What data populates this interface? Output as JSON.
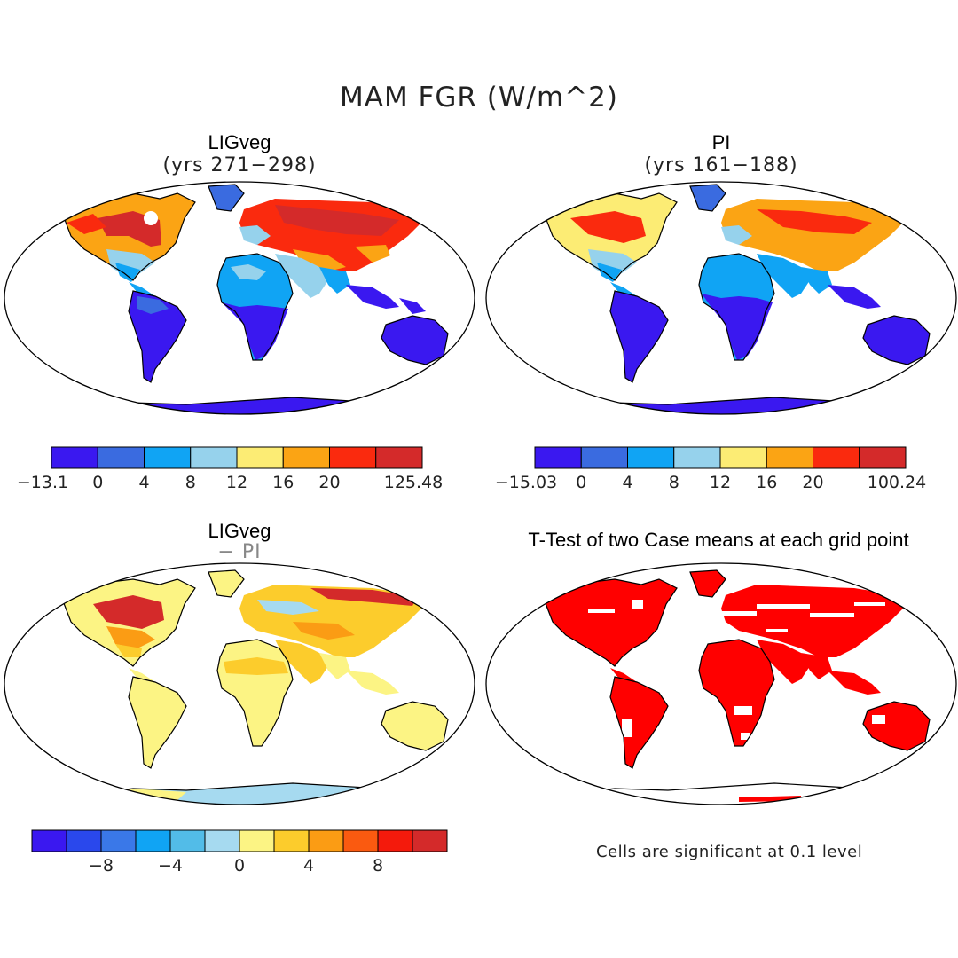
{
  "figure": {
    "title": "MAM FGR (W/m^2)",
    "panels": [
      {
        "id": "ligveg",
        "title": "LIGveg",
        "subtitle": "(yrs 271−298)",
        "colorbar": {
          "colors": [
            "#3a18f0",
            "#3a6be0",
            "#10a4f4",
            "#96d2ec",
            "#fcec74",
            "#fba414",
            "#fa2a0e",
            "#d42a2a"
          ],
          "labels": [
            "−13.1",
            "0",
            "4",
            "8",
            "12",
            "16",
            "20",
            "125.48"
          ]
        }
      },
      {
        "id": "pi",
        "title": "PI",
        "subtitle": "(yrs 161−188)",
        "colorbar": {
          "colors": [
            "#3a18f0",
            "#3a6be0",
            "#10a4f4",
            "#96d2ec",
            "#fcec74",
            "#fba414",
            "#fa2a0e",
            "#d42a2a"
          ],
          "labels": [
            "−15.03",
            "0",
            "4",
            "8",
            "12",
            "16",
            "20",
            "100.24"
          ]
        }
      },
      {
        "id": "diff",
        "title": "LIGveg",
        "subtitle": "− PI",
        "colorbar": {
          "colors": [
            "#3a18f0",
            "#2a48ec",
            "#3a78e8",
            "#10a4f4",
            "#52bce8",
            "#a6daf0",
            "#fcf484",
            "#fccc2c",
            "#fb9c14",
            "#fa5a10",
            "#f41a0c",
            "#d42a2a"
          ],
          "labels": [
            "−8",
            "−4",
            "0",
            "4",
            "8"
          ]
        }
      },
      {
        "id": "ttest",
        "title": "T-Test of two Case means at each grid point",
        "note": "Cells are significant at 0.1 level",
        "sig_color": "#ff0000"
      }
    ]
  }
}
